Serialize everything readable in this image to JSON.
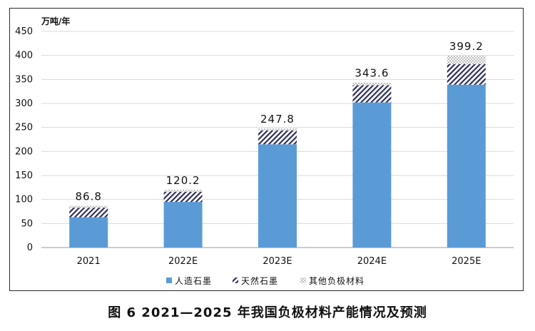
{
  "caption": "图 6  2021—2025 年我国负极材料产能情况及预测",
  "chart_data": {
    "type": "bar",
    "stacked": true,
    "unit": "万吨/年",
    "categories": [
      "2021",
      "2022E",
      "2023E",
      "2024E",
      "2025E"
    ],
    "series": [
      {
        "name": "人造石墨",
        "values": [
          63,
          95,
          215,
          302,
          339
        ],
        "color": "#5b9bd5",
        "pattern": "solid"
      },
      {
        "name": "天然石墨",
        "values": [
          20,
          21,
          29,
          36,
          43
        ],
        "color": "#2f2f5a",
        "pattern": "hatch"
      },
      {
        "name": "其他负极材料",
        "values": [
          3.8,
          4.2,
          3.8,
          5.6,
          17.2
        ],
        "color": "#c8c8c8",
        "pattern": "dots"
      }
    ],
    "totals": [
      "86.8",
      "120.2",
      "247.8",
      "343.6",
      "399.2"
    ],
    "ylim": [
      0,
      450
    ],
    "yticks": [
      "0",
      "50",
      "100",
      "150",
      "200",
      "250",
      "300",
      "350",
      "400",
      "450"
    ],
    "grid": true,
    "legend_position": "bottom"
  }
}
